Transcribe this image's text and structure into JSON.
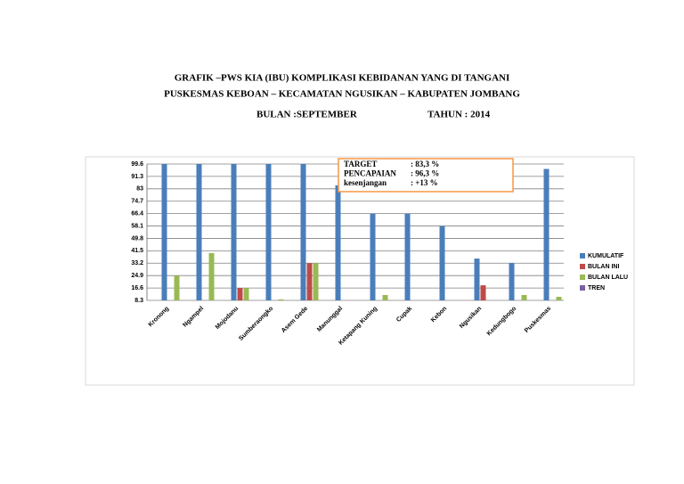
{
  "chart_data": {
    "type": "bar",
    "title": "GRAFIK –PWS KIA (IBU) KOMPLIKASI KEBIDANAN YANG DI TANGANI",
    "subtitle": "PUSKESMAS KEBOAN – KECAMATAN NGUSIKAN – KABUPATEN JOMBANG",
    "period": "BULAN :SEPTEMBER",
    "year": "TAHUN : 2014",
    "annotations": [
      {
        "label": "TARGET",
        "text": ": 83,3 %"
      },
      {
        "label": "PENCAPAIAN",
        "text": ": 96,3 %"
      },
      {
        "label": "kesenjangan",
        "text": ": +13 %"
      }
    ],
    "categories": [
      "Kronong",
      "Ngampel",
      "Mojodanu",
      "Sumberaongko",
      "Asem Gede",
      "Manunggal",
      "Ketapang Kuning",
      "Cupak",
      "Kebon",
      "Ngusikan",
      "Kedungbogo",
      "Puskesmas"
    ],
    "series": [
      {
        "name": "KUMULATIF",
        "color": "#4a7ebb",
        "values": [
          99.6,
          99.6,
          99.6,
          99.6,
          99.6,
          85.3,
          66.4,
          66.4,
          58.1,
          36.3,
          33.2,
          96.3
        ]
      },
      {
        "name": "BULAN INI",
        "color": "#be4b48",
        "values": [
          null,
          null,
          16.6,
          null,
          33.2,
          null,
          null,
          null,
          null,
          18.4,
          null,
          null
        ]
      },
      {
        "name": "BULAN LALU",
        "color": "#98b954",
        "values": [
          24.9,
          40,
          16.6,
          9,
          33.2,
          null,
          11.9,
          null,
          null,
          null,
          11.9,
          10.7
        ]
      },
      {
        "name": "TREN",
        "color": "#7d60a0",
        "values": [
          null,
          null,
          null,
          null,
          null,
          null,
          null,
          null,
          null,
          null,
          null,
          null
        ]
      }
    ],
    "ylim": [
      8.3,
      99.6
    ],
    "yticks": [
      8.3,
      16.6,
      24.9,
      33.2,
      41.5,
      49.8,
      58.1,
      66.4,
      74.7,
      83,
      91.3,
      99.6
    ],
    "grid": true,
    "legend": "right"
  }
}
